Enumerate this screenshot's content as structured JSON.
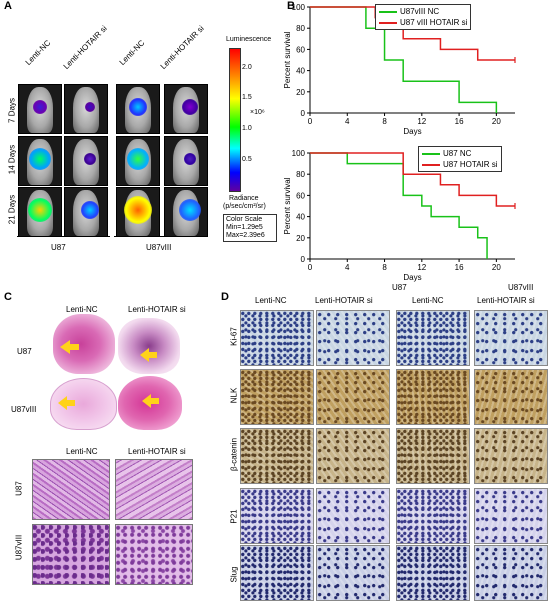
{
  "panels": {
    "A": "A",
    "B": "B",
    "C": "C",
    "D": "D"
  },
  "panelA": {
    "col_labels": [
      "Lenti-NC",
      "Lenti-HOTAIR si",
      "Lenti-NC",
      "Lenti-HOTAIR si"
    ],
    "row_labels": [
      "7 Days",
      "14 Days",
      "21 Days"
    ],
    "group_labels": [
      "U87",
      "U87vIII"
    ],
    "colorbar": {
      "title": "Luminescence",
      "ticks": [
        "2.0",
        "1.5",
        "1.0",
        "0.5"
      ],
      "exponent": "×10⁶",
      "unit_line1": "Radiance",
      "unit_line2": "(p/sec/cm²/sr)",
      "scale_title": "Color Scale",
      "scale_min": "Min=1.29e5",
      "scale_max": "Max=2.39e6"
    }
  },
  "panelB": {
    "xlabel": "Days",
    "ylabel": "Percent survival",
    "bottom_labels": [
      "U87",
      "U87vIII"
    ],
    "colors": {
      "nc": "#19c219",
      "si": "#e02020"
    }
  },
  "chart_data": [
    {
      "type": "line",
      "xlabel": "Days",
      "ylabel": "Percent survival",
      "xlim": [
        0,
        22
      ],
      "ylim": [
        0,
        100
      ],
      "xticks": [
        0,
        4,
        8,
        12,
        16,
        20
      ],
      "yticks": [
        0,
        20,
        40,
        60,
        80,
        100
      ],
      "series": [
        {
          "name": "U87vIII NC",
          "color": "#19c219",
          "steps": [
            [
              0,
              100
            ],
            [
              6,
              100
            ],
            [
              6,
              80
            ],
            [
              8,
              80
            ],
            [
              8,
              50
            ],
            [
              10,
              50
            ],
            [
              10,
              30
            ],
            [
              16,
              30
            ],
            [
              16,
              10
            ],
            [
              20,
              10
            ],
            [
              20,
              0
            ]
          ]
        },
        {
          "name": "U87 vIII HOTAIR si",
          "color": "#e02020",
          "steps": [
            [
              0,
              100
            ],
            [
              7,
              100
            ],
            [
              7,
              90
            ],
            [
              8,
              90
            ],
            [
              8,
              80
            ],
            [
              10,
              80
            ],
            [
              10,
              70
            ],
            [
              14,
              70
            ],
            [
              14,
              60
            ],
            [
              18,
              60
            ],
            [
              18,
              50
            ],
            [
              22,
              50
            ]
          ]
        }
      ]
    },
    {
      "type": "line",
      "xlabel": "Days",
      "ylabel": "Percent survival",
      "xlim": [
        0,
        22
      ],
      "ylim": [
        0,
        100
      ],
      "xticks": [
        0,
        4,
        8,
        12,
        16,
        20
      ],
      "yticks": [
        0,
        20,
        40,
        60,
        80,
        100
      ],
      "series": [
        {
          "name": "U87 NC",
          "color": "#19c219",
          "steps": [
            [
              0,
              100
            ],
            [
              4,
              100
            ],
            [
              4,
              90
            ],
            [
              10,
              90
            ],
            [
              10,
              60
            ],
            [
              12,
              60
            ],
            [
              12,
              50
            ],
            [
              13,
              50
            ],
            [
              13,
              40
            ],
            [
              16,
              40
            ],
            [
              16,
              30
            ],
            [
              18,
              30
            ],
            [
              18,
              20
            ],
            [
              19,
              20
            ],
            [
              19,
              0
            ]
          ]
        },
        {
          "name": "U87 HOTAIR si",
          "color": "#e02020",
          "steps": [
            [
              0,
              100
            ],
            [
              10,
              100
            ],
            [
              10,
              80
            ],
            [
              14,
              80
            ],
            [
              14,
              70
            ],
            [
              16,
              70
            ],
            [
              16,
              60
            ],
            [
              20,
              60
            ],
            [
              20,
              50
            ],
            [
              22,
              50
            ]
          ]
        }
      ]
    }
  ],
  "panelC": {
    "col_labels": [
      "Lenti-NC",
      "Lenti-HOTAIR si"
    ],
    "row_labels_top": [
      "U87",
      "U87vIII"
    ],
    "col_labels_bottom": [
      "Lenti-NC",
      "Lenti-HOTAIR si"
    ],
    "row_labels_bottom": [
      "U87",
      "U87vIII"
    ]
  },
  "panelD": {
    "col_labels": [
      "Lenti-NC",
      "Lenti-HOTAIR si",
      "Lenti-NC",
      "Lenti-HOTAIR si"
    ],
    "row_labels": [
      "Ki-67",
      "NLK",
      "β-catenin",
      "P21",
      "Slug"
    ]
  }
}
